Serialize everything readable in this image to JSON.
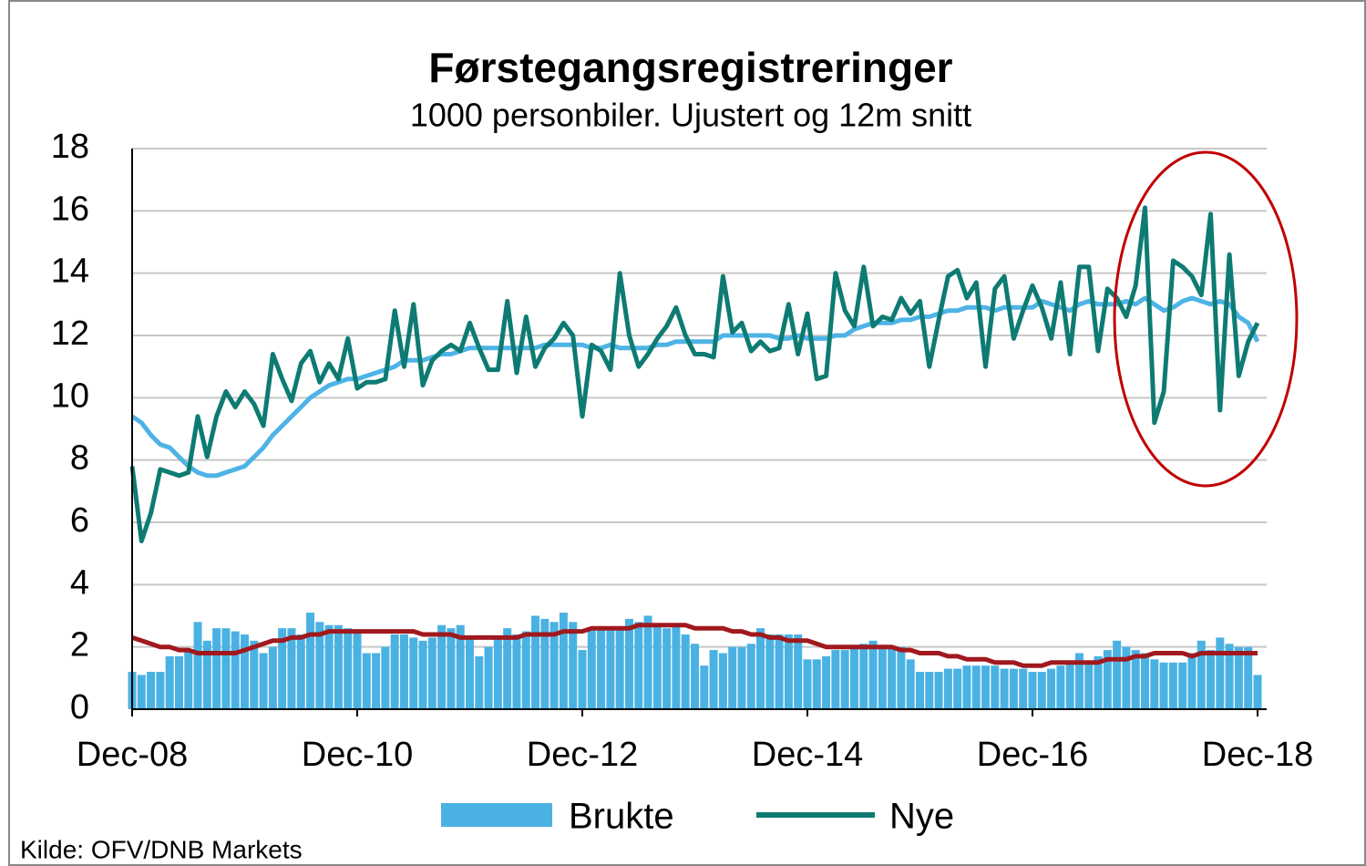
{
  "chart_data": {
    "type": "bar-line",
    "title": "Førstegangsregistreringer",
    "subtitle": "1000 personbiler. Ujustert og 12m snitt",
    "source": "Kilde: OFV/DNB Markets",
    "categories": [
      "Dec-08",
      null,
      null,
      null,
      null,
      null,
      null,
      null,
      null,
      null,
      null,
      null,
      null,
      null,
      null,
      null,
      null,
      null,
      null,
      null,
      null,
      null,
      null,
      null,
      "Dec-10",
      null,
      null,
      null,
      null,
      null,
      null,
      null,
      null,
      null,
      null,
      null,
      null,
      null,
      null,
      null,
      null,
      null,
      null,
      null,
      null,
      null,
      null,
      null,
      "Dec-12",
      null,
      null,
      null,
      null,
      null,
      null,
      null,
      null,
      null,
      null,
      null,
      null,
      null,
      null,
      null,
      null,
      null,
      null,
      null,
      null,
      null,
      null,
      null,
      "Dec-14",
      null,
      null,
      null,
      null,
      null,
      null,
      null,
      null,
      null,
      null,
      null,
      null,
      null,
      null,
      null,
      null,
      null,
      null,
      null,
      null,
      null,
      null,
      null,
      "Dec-16",
      null,
      null,
      null,
      null,
      null,
      null,
      null,
      null,
      null,
      null,
      null,
      null,
      null,
      null,
      null,
      null,
      null,
      null,
      null,
      null,
      null,
      null,
      null,
      "Dec-18"
    ],
    "ylim": [
      0,
      18
    ],
    "yticks": [
      0,
      2,
      4,
      6,
      8,
      10,
      12,
      14,
      16,
      18
    ],
    "grid": true,
    "series": [
      {
        "name": "Brukte",
        "kind": "bar",
        "color": "#4ab2e3",
        "values": [
          1.2,
          1.1,
          1.2,
          1.2,
          1.7,
          1.7,
          1.9,
          2.8,
          2.2,
          2.6,
          2.6,
          2.5,
          2.4,
          2.2,
          1.8,
          2.0,
          2.6,
          2.6,
          2.4,
          3.1,
          2.8,
          2.7,
          2.7,
          2.6,
          2.5,
          1.8,
          1.8,
          2.0,
          2.4,
          2.4,
          2.3,
          2.2,
          2.3,
          2.7,
          2.6,
          2.7,
          2.3,
          1.7,
          2.0,
          2.3,
          2.6,
          2.4,
          2.5,
          3.0,
          2.9,
          2.8,
          3.1,
          2.8,
          1.9,
          2.6,
          2.6,
          2.6,
          2.6,
          2.9,
          2.8,
          3.0,
          2.7,
          2.6,
          2.7,
          2.4,
          2.1,
          1.4,
          1.9,
          1.8,
          2.0,
          2.0,
          2.1,
          2.6,
          2.4,
          2.4,
          2.4,
          2.4,
          1.6,
          1.6,
          1.7,
          1.9,
          1.9,
          2.0,
          2.1,
          2.2,
          2.0,
          2.0,
          2.0,
          1.6,
          1.2,
          1.2,
          1.2,
          1.3,
          1.3,
          1.4,
          1.4,
          1.4,
          1.4,
          1.3,
          1.3,
          1.3,
          1.2,
          1.2,
          1.3,
          1.4,
          1.5,
          1.8,
          1.5,
          1.7,
          1.9,
          2.2,
          2.0,
          1.9,
          1.8,
          1.6,
          1.5,
          1.5,
          1.5,
          1.8,
          2.2,
          1.9,
          2.3,
          2.1,
          2.0,
          2.0,
          1.1
        ]
      },
      {
        "kind": "line",
        "color": "#a0191e",
        "values": [
          2.3,
          2.2,
          2.1,
          2.0,
          2.0,
          1.9,
          1.9,
          1.8,
          1.8,
          1.8,
          1.8,
          1.8,
          1.9,
          2.0,
          2.1,
          2.2,
          2.2,
          2.3,
          2.3,
          2.4,
          2.4,
          2.5,
          2.5,
          2.5,
          2.5,
          2.5,
          2.5,
          2.5,
          2.5,
          2.5,
          2.5,
          2.4,
          2.4,
          2.4,
          2.4,
          2.3,
          2.3,
          2.3,
          2.3,
          2.3,
          2.3,
          2.3,
          2.4,
          2.4,
          2.4,
          2.4,
          2.5,
          2.5,
          2.5,
          2.6,
          2.6,
          2.6,
          2.6,
          2.6,
          2.7,
          2.7,
          2.7,
          2.7,
          2.7,
          2.7,
          2.6,
          2.6,
          2.6,
          2.6,
          2.5,
          2.5,
          2.4,
          2.4,
          2.3,
          2.3,
          2.2,
          2.2,
          2.2,
          2.1,
          2.0,
          2.0,
          2.0,
          2.0,
          2.0,
          2.0,
          2.0,
          2.0,
          1.9,
          1.9,
          1.8,
          1.8,
          1.8,
          1.7,
          1.7,
          1.6,
          1.6,
          1.6,
          1.5,
          1.5,
          1.5,
          1.4,
          1.4,
          1.4,
          1.5,
          1.5,
          1.5,
          1.5,
          1.5,
          1.5,
          1.6,
          1.6,
          1.6,
          1.7,
          1.7,
          1.8,
          1.8,
          1.8,
          1.8,
          1.7,
          1.8,
          1.8,
          1.8,
          1.8,
          1.8,
          1.8,
          1.8
        ]
      },
      {
        "kind": "line",
        "color": "#4eb3e5",
        "values": [
          9.4,
          9.2,
          8.8,
          8.5,
          8.4,
          8.1,
          7.8,
          7.6,
          7.5,
          7.5,
          7.6,
          7.7,
          7.8,
          8.1,
          8.4,
          8.8,
          9.1,
          9.4,
          9.7,
          10.0,
          10.2,
          10.4,
          10.5,
          10.6,
          10.6,
          10.7,
          10.8,
          10.9,
          11.0,
          11.2,
          11.2,
          11.2,
          11.3,
          11.4,
          11.4,
          11.5,
          11.6,
          11.6,
          11.6,
          11.6,
          11.6,
          11.6,
          11.6,
          11.6,
          11.7,
          11.7,
          11.7,
          11.7,
          11.7,
          11.6,
          11.6,
          11.7,
          11.6,
          11.6,
          11.6,
          11.6,
          11.7,
          11.7,
          11.8,
          11.8,
          11.8,
          11.8,
          11.8,
          12.0,
          12.0,
          12.0,
          12.0,
          12.0,
          12.0,
          11.9,
          11.9,
          12.0,
          11.9,
          11.9,
          11.9,
          12.0,
          12.0,
          12.2,
          12.3,
          12.4,
          12.4,
          12.4,
          12.5,
          12.5,
          12.6,
          12.6,
          12.7,
          12.8,
          12.8,
          12.9,
          12.9,
          12.9,
          12.8,
          12.9,
          12.9,
          12.9,
          12.9,
          13.1,
          13.0,
          12.9,
          12.8,
          13.0,
          13.1,
          13.0,
          13.0,
          13.0,
          13.1,
          13.0,
          13.2,
          13.0,
          12.8,
          12.9,
          13.1,
          13.2,
          13.1,
          13.0,
          13.1,
          13.0,
          12.6,
          12.4,
          11.8
        ]
      },
      {
        "name": "Nye",
        "kind": "line",
        "color": "#0e7b73",
        "values": [
          7.8,
          5.4,
          6.3,
          7.7,
          7.6,
          7.5,
          7.6,
          9.4,
          8.1,
          9.4,
          10.2,
          9.7,
          10.2,
          9.8,
          9.1,
          11.4,
          10.6,
          9.9,
          11.1,
          11.5,
          10.5,
          11.1,
          10.6,
          11.9,
          10.3,
          10.5,
          10.5,
          10.6,
          12.8,
          11.0,
          13.0,
          10.4,
          11.2,
          11.5,
          11.7,
          11.5,
          12.4,
          11.6,
          10.9,
          10.9,
          13.1,
          10.8,
          12.6,
          11.0,
          11.6,
          11.9,
          12.4,
          12.0,
          9.4,
          11.7,
          11.5,
          10.9,
          14.0,
          12.0,
          11.0,
          11.4,
          11.9,
          12.3,
          12.9,
          12.0,
          11.4,
          11.4,
          11.3,
          13.9,
          12.1,
          12.4,
          11.5,
          11.8,
          11.5,
          11.6,
          13.0,
          11.4,
          12.7,
          10.6,
          10.7,
          14.0,
          12.8,
          12.3,
          14.2,
          12.3,
          12.6,
          12.5,
          13.2,
          12.7,
          13.1,
          11.0,
          12.5,
          13.9,
          14.1,
          13.2,
          13.7,
          11.0,
          13.5,
          13.9,
          11.9,
          12.8,
          13.6,
          12.9,
          11.9,
          13.7,
          11.4,
          14.2,
          14.2,
          11.5,
          13.5,
          13.2,
          12.6,
          13.6,
          16.1,
          9.2,
          10.2,
          14.4,
          14.2,
          13.9,
          13.3,
          15.9,
          9.6,
          14.6,
          10.7,
          11.8,
          12.4
        ]
      }
    ]
  }
}
